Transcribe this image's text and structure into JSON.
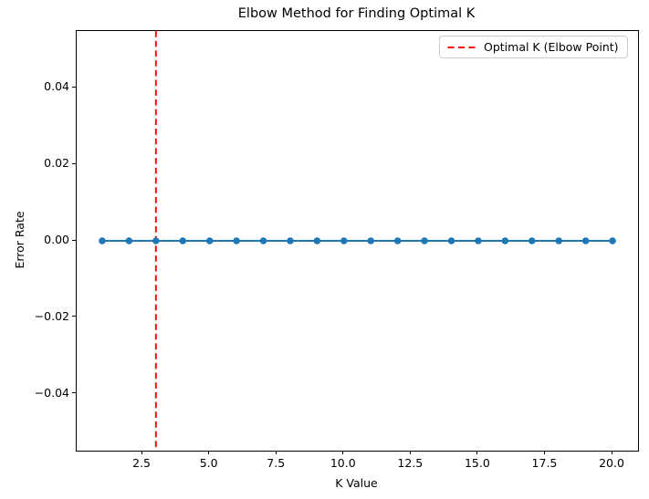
{
  "chart_data": {
    "type": "line",
    "title": "Elbow Method for Finding Optimal K",
    "xlabel": "K Value",
    "ylabel": "Error Rate",
    "x": [
      1,
      2,
      3,
      4,
      5,
      6,
      7,
      8,
      9,
      10,
      11,
      12,
      13,
      14,
      15,
      16,
      17,
      18,
      19,
      20
    ],
    "series": [
      {
        "name": "Error Rate",
        "values": [
          0,
          0,
          0,
          0,
          0,
          0,
          0,
          0,
          0,
          0,
          0,
          0,
          0,
          0,
          0,
          0,
          0,
          0,
          0,
          0
        ]
      }
    ],
    "optimal_k": 3,
    "marker": "o",
    "grid": false,
    "xlim": [
      0.05,
      20.95
    ],
    "ylim": [
      -0.0548,
      0.0548
    ],
    "xticks": {
      "values": [
        2.5,
        5,
        7.5,
        10,
        12.5,
        15,
        17.5,
        20
      ],
      "labels": [
        "2.5",
        "5.0",
        "7.5",
        "10.0",
        "12.5",
        "15.0",
        "17.5",
        "20.0"
      ]
    },
    "yticks": {
      "values": [
        -0.04,
        -0.02,
        0,
        0.02,
        0.04
      ],
      "labels": [
        "−0.04",
        "−0.02",
        "0.00",
        "0.02",
        "0.04"
      ]
    },
    "legend": {
      "position": "upper right",
      "entries": [
        {
          "label": "Optimal K (Elbow Point)",
          "color": "#ff0000",
          "style": "dashed"
        }
      ]
    },
    "colors": {
      "line": "#1f77b4",
      "marker": "#1f77b4",
      "optimal_line": "#ff0000",
      "spine": "#000000",
      "background": "#ffffff",
      "legend_border": "#cccccc"
    }
  }
}
